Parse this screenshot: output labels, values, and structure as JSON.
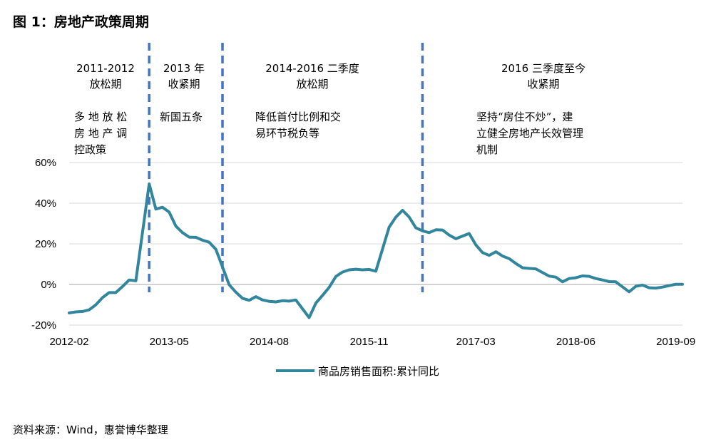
{
  "title": "图 1：房地产政策周期",
  "source": "资料来源：Wind，惠誉博华整理",
  "colors": {
    "series": "#31859C",
    "divider": "#4472C4",
    "grid": "#D9D9D9",
    "axis": "#A6A6A6"
  },
  "phases": [
    {
      "head": [
        "2011-2012",
        "放松期"
      ],
      "desc": [
        "多 地 放 松",
        "房 地 产 调",
        "控政策"
      ]
    },
    {
      "head": [
        "2013 年",
        "收紧期"
      ],
      "desc": [
        "新国五条"
      ]
    },
    {
      "head": [
        "2014-2016 二季度",
        "放松期"
      ],
      "desc": [
        "降低首付比例和交",
        "易环节税负等"
      ]
    },
    {
      "head": [
        "2016 三季度至今",
        "收紧期"
      ],
      "desc": [
        "坚持“房住不炒”，建",
        "立健全房地产长效管理",
        "机制"
      ]
    }
  ],
  "chart_data": {
    "type": "line",
    "x_ticks": [
      "2012-02",
      "2013-05",
      "2014-08",
      "2015-11",
      "2017-03",
      "2018-06",
      "2019-09"
    ],
    "y_ticks": [
      "-20%",
      "0%",
      "20%",
      "40%",
      "60%"
    ],
    "ylim": [
      -20,
      60
    ],
    "xlim": [
      "2012-02",
      "2019-10"
    ],
    "grid": "horizontal",
    "legend_position": "bottom",
    "phase_boundaries": [
      "2013-02",
      "2014-01",
      "2016-07"
    ],
    "series": [
      {
        "name": "商品房销售面积:累计同比",
        "points": [
          [
            "2012-02",
            -14.0
          ],
          [
            "2012-03",
            -13.5
          ],
          [
            "2012-04",
            -13.3
          ],
          [
            "2012-05",
            -12.5
          ],
          [
            "2012-06",
            -10.0
          ],
          [
            "2012-07",
            -6.5
          ],
          [
            "2012-08",
            -4.0
          ],
          [
            "2012-09",
            -4.0
          ],
          [
            "2012-10",
            -1.0
          ],
          [
            "2012-11",
            2.2
          ],
          [
            "2012-12",
            1.8
          ],
          [
            "2013-02",
            49.5
          ],
          [
            "2013-03",
            37.1
          ],
          [
            "2013-04",
            38.0
          ],
          [
            "2013-05",
            35.6
          ],
          [
            "2013-06",
            28.7
          ],
          [
            "2013-07",
            25.5
          ],
          [
            "2013-08",
            23.3
          ],
          [
            "2013-09",
            23.2
          ],
          [
            "2013-10",
            21.8
          ],
          [
            "2013-11",
            20.8
          ],
          [
            "2013-12",
            17.3
          ],
          [
            "2014-02",
            -0.1
          ],
          [
            "2014-03",
            -3.8
          ],
          [
            "2014-04",
            -6.8
          ],
          [
            "2014-05",
            -7.8
          ],
          [
            "2014-06",
            -6.0
          ],
          [
            "2014-07",
            -7.6
          ],
          [
            "2014-08",
            -8.3
          ],
          [
            "2014-09",
            -8.6
          ],
          [
            "2014-10",
            -8.0
          ],
          [
            "2014-11",
            -8.2
          ],
          [
            "2014-12",
            -7.6
          ],
          [
            "2015-02",
            -16.3
          ],
          [
            "2015-03",
            -9.2
          ],
          [
            "2015-04",
            -5.4
          ],
          [
            "2015-05",
            -1.4
          ],
          [
            "2015-06",
            3.9
          ],
          [
            "2015-07",
            6.1
          ],
          [
            "2015-08",
            7.2
          ],
          [
            "2015-09",
            7.5
          ],
          [
            "2015-10",
            7.2
          ],
          [
            "2015-11",
            7.4
          ],
          [
            "2015-12",
            6.5
          ],
          [
            "2016-02",
            28.2
          ],
          [
            "2016-03",
            33.1
          ],
          [
            "2016-04",
            36.5
          ],
          [
            "2016-05",
            33.2
          ],
          [
            "2016-06",
            27.9
          ],
          [
            "2016-07",
            26.4
          ],
          [
            "2016-08",
            25.5
          ],
          [
            "2016-09",
            26.9
          ],
          [
            "2016-10",
            26.8
          ],
          [
            "2016-11",
            24.3
          ],
          [
            "2016-12",
            22.5
          ],
          [
            "2017-02",
            25.1
          ],
          [
            "2017-03",
            19.5
          ],
          [
            "2017-04",
            15.7
          ],
          [
            "2017-05",
            14.3
          ],
          [
            "2017-06",
            16.1
          ],
          [
            "2017-07",
            14.0
          ],
          [
            "2017-08",
            12.7
          ],
          [
            "2017-09",
            10.3
          ],
          [
            "2017-10",
            8.2
          ],
          [
            "2017-11",
            7.9
          ],
          [
            "2017-12",
            7.7
          ],
          [
            "2018-02",
            4.1
          ],
          [
            "2018-03",
            3.6
          ],
          [
            "2018-04",
            1.3
          ],
          [
            "2018-05",
            2.9
          ],
          [
            "2018-06",
            3.3
          ],
          [
            "2018-07",
            4.2
          ],
          [
            "2018-08",
            4.0
          ],
          [
            "2018-09",
            2.9
          ],
          [
            "2018-10",
            2.2
          ],
          [
            "2018-11",
            1.4
          ],
          [
            "2018-12",
            1.3
          ],
          [
            "2019-02",
            -3.6
          ],
          [
            "2019-03",
            -0.9
          ],
          [
            "2019-04",
            -0.3
          ],
          [
            "2019-05",
            -1.6
          ],
          [
            "2019-06",
            -1.8
          ],
          [
            "2019-07",
            -1.3
          ],
          [
            "2019-08",
            -0.6
          ],
          [
            "2019-09",
            0.1
          ],
          [
            "2019-10",
            0.1
          ]
        ]
      }
    ]
  }
}
